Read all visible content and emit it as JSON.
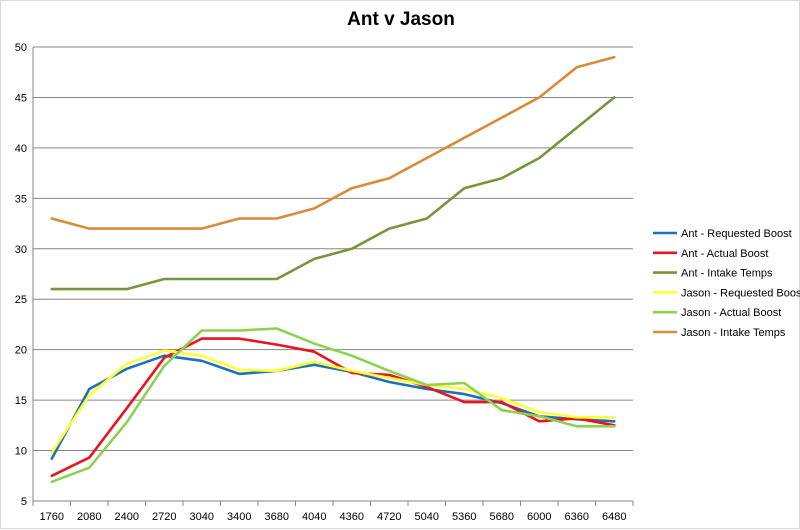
{
  "chart_data": {
    "type": "line",
    "title": "Ant v Jason",
    "xlabel": "",
    "ylabel": "",
    "categories": [
      "1760",
      "2080",
      "2400",
      "2720",
      "3040",
      "3400",
      "3680",
      "4040",
      "4360",
      "4720",
      "5040",
      "5360",
      "5680",
      "6000",
      "6360",
      "6480"
    ],
    "ylim": [
      5,
      50
    ],
    "yticks": [
      5,
      10,
      15,
      20,
      25,
      30,
      35,
      40,
      45,
      50
    ],
    "grid": true,
    "legend_position": "right",
    "series": [
      {
        "name": "Ant - Requested Boost",
        "color": "#1f6fbf",
        "values": [
          9.2,
          16.1,
          18.1,
          19.4,
          18.9,
          17.6,
          17.9,
          18.5,
          17.8,
          16.8,
          16.1,
          15.6,
          14.7,
          13.4,
          13.1,
          12.9
        ]
      },
      {
        "name": "Ant - Actual Boost",
        "color": "#e8141e",
        "values": [
          7.5,
          9.3,
          14.2,
          19.2,
          21.1,
          21.1,
          20.5,
          19.8,
          17.7,
          17.5,
          16.3,
          14.8,
          14.8,
          12.9,
          13.2,
          12.5
        ]
      },
      {
        "name": "Ant - Intake Temps",
        "color": "#75963c",
        "values": [
          26,
          26,
          26,
          27,
          27,
          27,
          27,
          29,
          30,
          32,
          33,
          36,
          37,
          39,
          42,
          45
        ]
      },
      {
        "name": "Jason - Requested Boost",
        "color": "#ffff33",
        "values": [
          9.8,
          15.5,
          18.6,
          19.9,
          19.4,
          18.0,
          17.9,
          18.8,
          17.9,
          17.2,
          16.5,
          16.1,
          15.2,
          13.8,
          13.3,
          13.3
        ]
      },
      {
        "name": "Jason - Actual Boost",
        "color": "#8fd14f",
        "values": [
          6.9,
          8.3,
          12.8,
          18.4,
          21.9,
          21.9,
          22.1,
          20.6,
          19.4,
          17.9,
          16.5,
          16.7,
          14.0,
          13.4,
          12.4,
          12.4
        ]
      },
      {
        "name": "Jason - Intake Temps",
        "color": "#d98b3a",
        "values": [
          33,
          32,
          32,
          32,
          32,
          33,
          33,
          34,
          36,
          37,
          39,
          41,
          43,
          45,
          48,
          49
        ]
      }
    ]
  }
}
